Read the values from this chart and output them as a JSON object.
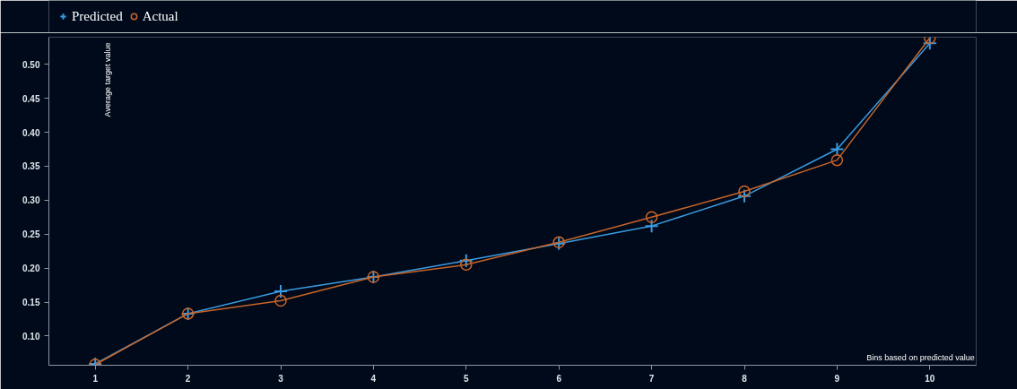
{
  "chart_data": {
    "type": "line",
    "xlabel": "Bins based on predicted value",
    "ylabel": "Average target value",
    "x": [
      1,
      2,
      3,
      4,
      5,
      6,
      7,
      8,
      9,
      10
    ],
    "xlim": [
      0.5,
      10.5
    ],
    "xticks": [
      1,
      2,
      3,
      4,
      5,
      6,
      7,
      8,
      9,
      10
    ],
    "ylim": [
      0.057,
      0.54
    ],
    "yticks": [
      {
        "value": 0.1,
        "label": "0.10"
      },
      {
        "value": 0.15,
        "label": "0.15"
      },
      {
        "value": 0.2,
        "label": "0.20"
      },
      {
        "value": 0.25,
        "label": "0.25"
      },
      {
        "value": 0.3,
        "label": "0.30"
      },
      {
        "value": 0.35,
        "label": "0.35"
      },
      {
        "value": 0.4,
        "label": "0.40"
      },
      {
        "value": 0.45,
        "label": "0.45"
      },
      {
        "value": 0.5,
        "label": "0.50"
      }
    ],
    "grid": false,
    "legend": "top left",
    "line_style": "solid",
    "series": [
      {
        "name": "Predicted",
        "color": "#3a9be0",
        "marker": "cross",
        "values": [
          0.059,
          0.133,
          0.166,
          0.187,
          0.211,
          0.236,
          0.262,
          0.306,
          0.375,
          0.531
        ]
      },
      {
        "name": "Actual",
        "color": "#c8642a",
        "marker": "circle",
        "values": [
          0.058,
          0.133,
          0.152,
          0.187,
          0.205,
          0.238,
          0.275,
          0.313,
          0.359,
          0.539
        ]
      }
    ]
  }
}
